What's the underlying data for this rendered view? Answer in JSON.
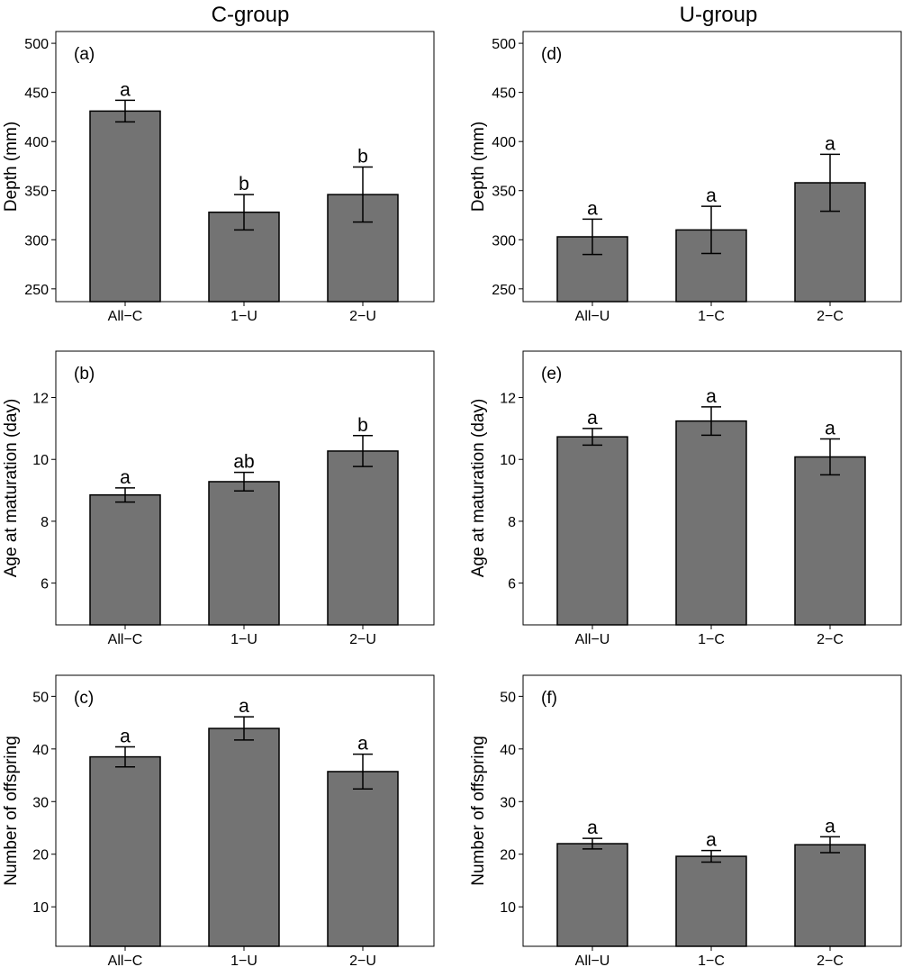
{
  "column_titles": [
    "C-group",
    "U-group"
  ],
  "colors": {
    "bar_fill": "#737373",
    "bar_stroke": "#000000"
  },
  "chart_data": [
    {
      "panel": "(a)",
      "type": "bar",
      "categories": [
        "All−C",
        "1−U",
        "2−U"
      ],
      "values": [
        431,
        328,
        346
      ],
      "errors": [
        11,
        18,
        28
      ],
      "letters": [
        "a",
        "b",
        "b"
      ],
      "ylabel": "Depth (mm)",
      "ylim": [
        237,
        512
      ],
      "yticks": [
        250,
        300,
        350,
        400,
        450,
        500
      ]
    },
    {
      "panel": "(b)",
      "type": "bar",
      "categories": [
        "All−C",
        "1−U",
        "2−U"
      ],
      "values": [
        8.85,
        9.28,
        10.27
      ],
      "errors": [
        0.23,
        0.3,
        0.5
      ],
      "letters": [
        "a",
        "ab",
        "b"
      ],
      "ylabel": "Age at maturation (day)",
      "ylim": [
        4.65,
        13.5
      ],
      "yticks": [
        6,
        8,
        10,
        12
      ]
    },
    {
      "panel": "(c)",
      "type": "bar",
      "categories": [
        "All−C",
        "1−U",
        "2−U"
      ],
      "values": [
        38.5,
        43.9,
        35.7
      ],
      "errors": [
        1.9,
        2.2,
        3.3
      ],
      "letters": [
        "a",
        "a",
        "a"
      ],
      "ylabel": "Number of offspring",
      "ylim": [
        2.5,
        54
      ],
      "yticks": [
        10,
        20,
        30,
        40,
        50
      ]
    },
    {
      "panel": "(d)",
      "type": "bar",
      "categories": [
        "All−U",
        "1−C",
        "2−C"
      ],
      "values": [
        303,
        310,
        358
      ],
      "errors": [
        18,
        24,
        29
      ],
      "letters": [
        "a",
        "a",
        "a"
      ],
      "ylabel": "Depth (mm)",
      "ylim": [
        237,
        512
      ],
      "yticks": [
        250,
        300,
        350,
        400,
        450,
        500
      ]
    },
    {
      "panel": "(e)",
      "type": "bar",
      "categories": [
        "All−U",
        "1−C",
        "2−C"
      ],
      "values": [
        10.73,
        11.24,
        10.08
      ],
      "errors": [
        0.27,
        0.46,
        0.58
      ],
      "letters": [
        "a",
        "a",
        "a"
      ],
      "ylabel": "Age at maturation (day)",
      "ylim": [
        4.65,
        13.5
      ],
      "yticks": [
        6,
        8,
        10,
        12
      ]
    },
    {
      "panel": "(f)",
      "type": "bar",
      "categories": [
        "All−U",
        "1−C",
        "2−C"
      ],
      "values": [
        22.0,
        19.6,
        21.8
      ],
      "errors": [
        1.0,
        1.1,
        1.5
      ],
      "letters": [
        "a",
        "a",
        "a"
      ],
      "ylabel": "Number of offspring",
      "ylim": [
        2.5,
        54
      ],
      "yticks": [
        10,
        20,
        30,
        40,
        50
      ]
    }
  ]
}
